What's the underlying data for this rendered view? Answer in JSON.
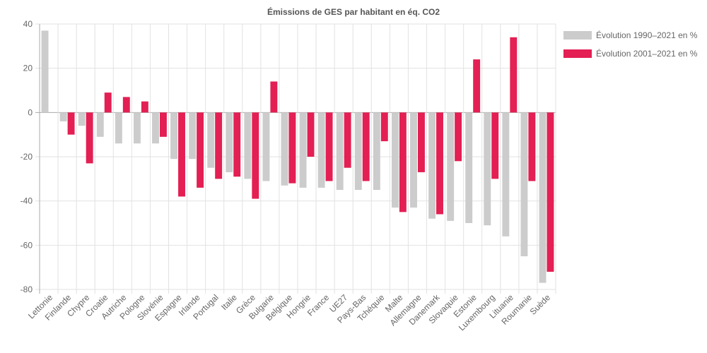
{
  "chart_data": {
    "type": "bar",
    "title": "Émissions de GES par habitant en éq. CO2",
    "xlabel": "",
    "ylabel": "",
    "ylim": [
      -80,
      40
    ],
    "yticks": [
      40,
      20,
      0,
      -20,
      -40,
      -60,
      -80
    ],
    "grid": true,
    "legend_position": "right",
    "categories": [
      "Lettonie",
      "Finlande",
      "Chypre",
      "Croatie",
      "Autriche",
      "Pologne",
      "Slovénie",
      "Espagne",
      "Irlande",
      "Portugal",
      "Italie",
      "Grèce",
      "Bulgarie",
      "Belgique",
      "Hongrie",
      "France",
      "UE27",
      "Pays-Bas",
      "Tchéquie",
      "Malte",
      "Allemagne",
      "Danemark",
      "Slovaquie",
      "Estonie",
      "Luxembourg",
      "Lituanie",
      "Roumanie",
      "Suède"
    ],
    "series": [
      {
        "name": "Évolution 1990–2021 en %",
        "color": "#cccccc",
        "values": [
          37,
          -4,
          -6,
          -11,
          -14,
          -14,
          -14,
          -21,
          -21,
          -25,
          -27,
          -30,
          -31,
          -33,
          -34,
          -34,
          -35,
          -35,
          -35,
          -43,
          -43,
          -48,
          -49,
          -50,
          -51,
          -56,
          -65,
          -77
        ]
      },
      {
        "name": "Évolution 2001–2021 en %",
        "color": "#e31f53",
        "values": [
          null,
          -10,
          -23,
          9,
          7,
          5,
          -11,
          -38,
          -34,
          -30,
          -29,
          -39,
          14,
          -32,
          -20,
          -31,
          -25,
          -31,
          -13,
          -45,
          -27,
          -46,
          -22,
          24,
          -30,
          34,
          -31,
          -72
        ]
      }
    ]
  }
}
